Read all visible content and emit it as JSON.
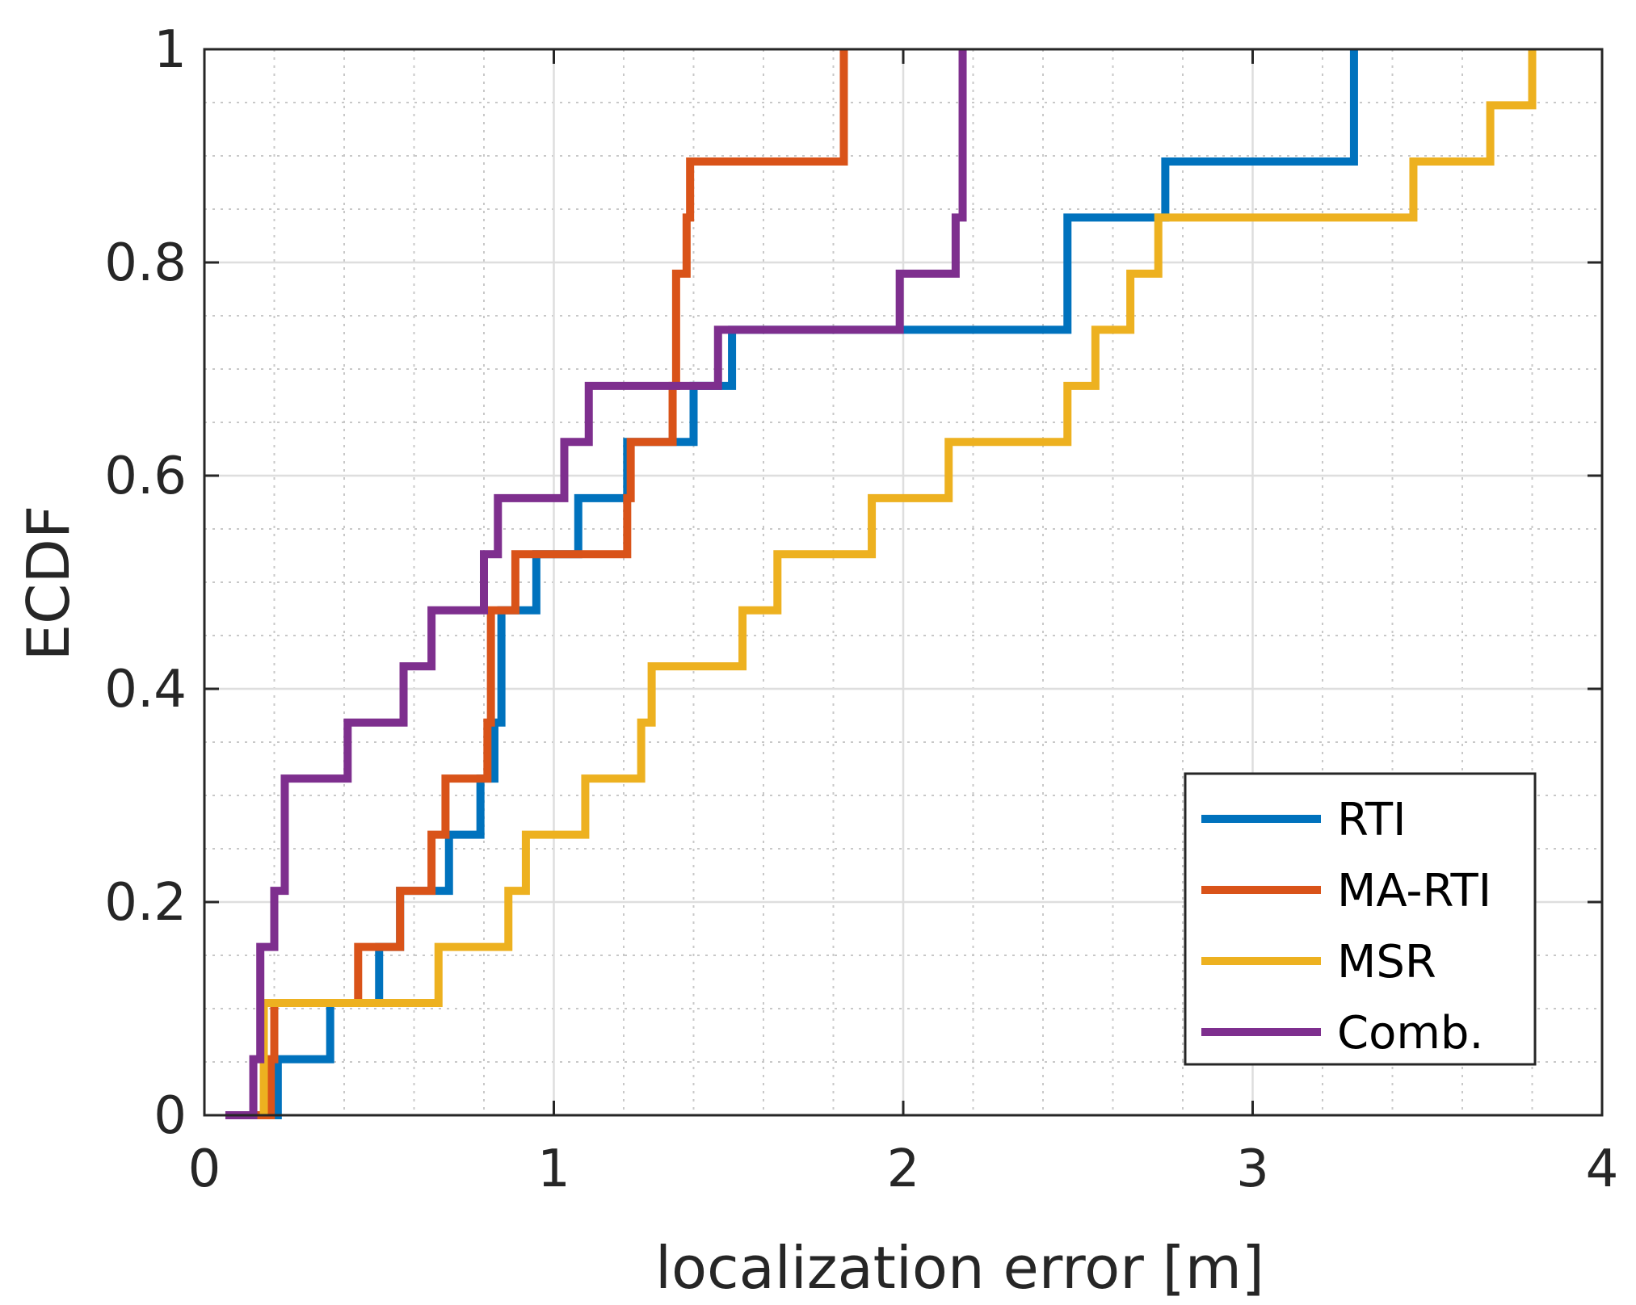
{
  "chart_data": {
    "type": "line",
    "step": true,
    "title": "",
    "xlabel": "localization error [m]",
    "ylabel": "ECDF",
    "xlim": [
      0,
      4
    ],
    "ylim": [
      0,
      1
    ],
    "grid": "on",
    "legend_location": "bottom-right",
    "x_ticks": [
      0,
      1,
      2,
      3,
      4
    ],
    "x_tick_labels": [
      "0",
      "1",
      "2",
      "3",
      "4"
    ],
    "y_ticks": [
      0,
      0.2,
      0.4,
      0.6,
      0.8,
      1
    ],
    "y_tick_labels": [
      "0",
      "0.2",
      "0.4",
      "0.6",
      "0.8",
      "1"
    ],
    "series": [
      {
        "name": "RTI",
        "color": "#0072BD",
        "x": [
          0.19,
          0.21,
          0.36,
          0.5,
          0.56,
          0.7,
          0.79,
          0.83,
          0.85,
          0.95,
          1.07,
          1.21,
          1.4,
          1.51,
          2.47,
          2.75,
          3.29
        ],
        "y": [
          0,
          0.0526,
          0.1053,
          0.1579,
          0.2105,
          0.2632,
          0.3158,
          0.3684,
          0.4737,
          0.5263,
          0.5789,
          0.6316,
          0.6842,
          0.7368,
          0.8421,
          0.8947,
          0.9474
        ],
        "x_end": 3.29,
        "y_end": 1.0
      },
      {
        "name": "MA-RTI",
        "color": "#D95319",
        "x": [
          0.11,
          0.19,
          0.2,
          0.44,
          0.56,
          0.65,
          0.69,
          0.81,
          0.82,
          0.89,
          1.21,
          1.22,
          1.34,
          1.35,
          1.38,
          1.39,
          1.83
        ],
        "y": [
          0,
          0.0526,
          0.1053,
          0.1579,
          0.2105,
          0.2632,
          0.3158,
          0.3684,
          0.4737,
          0.5263,
          0.5789,
          0.6316,
          0.6842,
          0.7895,
          0.8421,
          0.8947,
          0.9474
        ],
        "x_end": 1.83,
        "y_end": 1.0
      },
      {
        "name": "MSR",
        "color": "#EDB120",
        "x": [
          0.17,
          0.67,
          0.87,
          0.92,
          1.09,
          1.25,
          1.28,
          1.54,
          1.64,
          1.91,
          2.13,
          2.47,
          2.55,
          2.65,
          2.73,
          3.46,
          3.68,
          3.8
        ],
        "y": [
          0.1053,
          0.1579,
          0.2105,
          0.2632,
          0.3158,
          0.3684,
          0.4211,
          0.4737,
          0.5263,
          0.5789,
          0.6316,
          0.6842,
          0.7368,
          0.7895,
          0.8421,
          0.8947,
          0.9474,
          1.0
        ],
        "x_end": 3.8,
        "y_end": 1.0
      },
      {
        "name": "Comb.",
        "color": "#7E2F8E",
        "x": [
          0.06,
          0.14,
          0.16,
          0.2,
          0.23,
          0.41,
          0.57,
          0.65,
          0.8,
          0.84,
          1.03,
          1.1,
          1.47,
          1.99,
          2.15,
          2.17
        ],
        "y": [
          0,
          0.0526,
          0.1579,
          0.2105,
          0.3158,
          0.3684,
          0.4211,
          0.4737,
          0.5263,
          0.5789,
          0.6316,
          0.6842,
          0.7368,
          0.7895,
          0.8421,
          0.9474
        ],
        "x_end": 2.17,
        "y_end": 1.0
      }
    ]
  }
}
